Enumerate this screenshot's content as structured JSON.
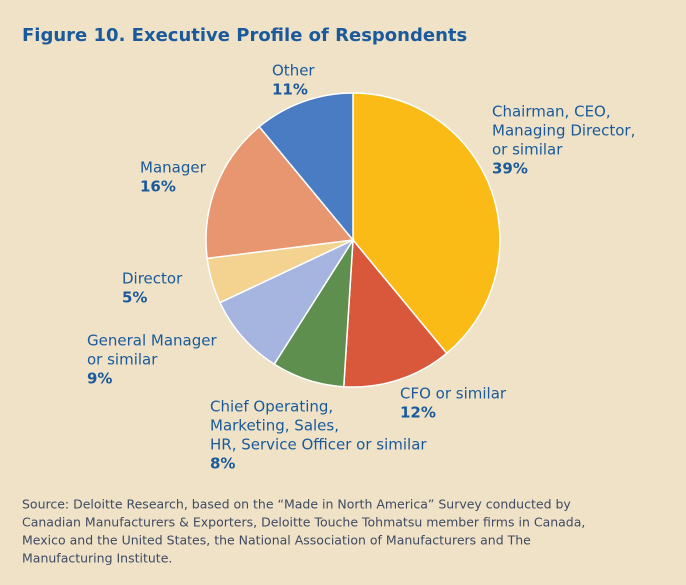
{
  "chart_data": {
    "type": "pie",
    "title": "Figure 10. Executive Profile of Respondents",
    "categories": [
      [
        "Chairman, CEO,",
        "Managing Director,",
        "or similar"
      ],
      [
        "CFO or similar"
      ],
      [
        "Chief Operating,",
        "Marketing, Sales,",
        "HR, Service Officer or similar"
      ],
      [
        "General Manager",
        "or similar"
      ],
      [
        "Director"
      ],
      [
        "Manager"
      ],
      [
        "Other"
      ]
    ],
    "values": [
      39,
      12,
      8,
      9,
      5,
      16,
      11
    ],
    "value_labels": [
      "39%",
      "12%",
      "8%",
      "9%",
      "5%",
      "16%",
      "11%"
    ],
    "colors": [
      "#fbbb16",
      "#d9573a",
      "#5e8f4f",
      "#a5b5e0",
      "#f4d290",
      "#e8966f",
      "#4a7cc4"
    ],
    "source": [
      "Source: Deloitte Research, based on the “Made in North America” Survey conducted by",
      "Canadian Manufacturers & Exporters, Deloitte Touche Tohmatsu member firms in Canada,",
      "Mexico and the United States, the National Association of Manufacturers and The",
      "Manufacturing Institute."
    ]
  }
}
